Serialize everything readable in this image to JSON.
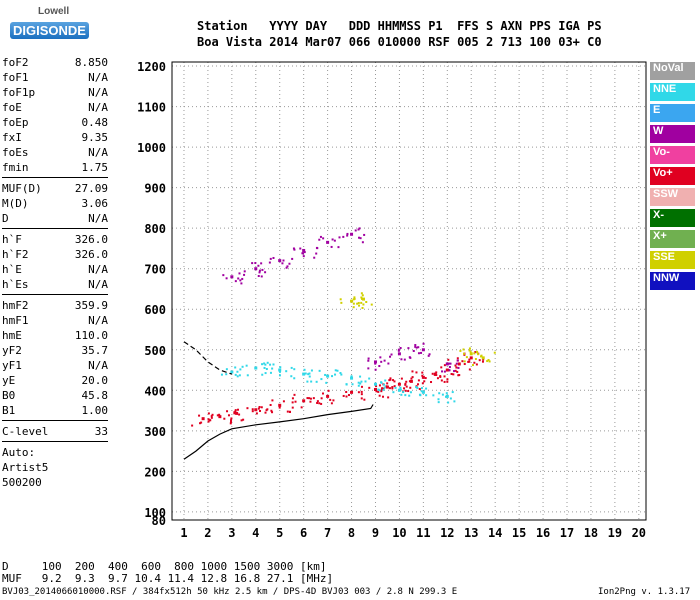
{
  "logo": {
    "line1": "Lowell",
    "line2": "DIGISONDE"
  },
  "header": {
    "line1": "Station   YYYY DAY   DDD HHMMSS P1  FFS S AXN PPS IGA PS",
    "line2": "Boa Vista 2014 Mar07 066 010000 RSF 005 2 713 100 03+ C0"
  },
  "params": {
    "group1": [
      {
        "name": "foF2",
        "value": "8.850"
      },
      {
        "name": "foF1",
        "value": "N/A"
      },
      {
        "name": "foF1p",
        "value": "N/A"
      },
      {
        "name": "foE",
        "value": "N/A"
      },
      {
        "name": "foEp",
        "value": "0.48"
      },
      {
        "name": "fxI",
        "value": "9.35"
      },
      {
        "name": "foEs",
        "value": "N/A"
      },
      {
        "name": "fmin",
        "value": "1.75"
      }
    ],
    "group2": [
      {
        "name": "MUF(D)",
        "value": "27.09"
      },
      {
        "name": "M(D)",
        "value": "3.06"
      },
      {
        "name": "D",
        "value": "N/A"
      }
    ],
    "group3": [
      {
        "name": "h`F",
        "value": "326.0"
      },
      {
        "name": "h`F2",
        "value": "326.0"
      },
      {
        "name": "h`E",
        "value": "N/A"
      },
      {
        "name": "h`Es",
        "value": "N/A"
      }
    ],
    "group4": [
      {
        "name": "hmF2",
        "value": "359.9"
      },
      {
        "name": "hmF1",
        "value": "N/A"
      },
      {
        "name": "hmE",
        "value": "110.0"
      },
      {
        "name": "yF2",
        "value": "35.7"
      },
      {
        "name": "yF1",
        "value": "N/A"
      },
      {
        "name": "yE",
        "value": "20.0"
      },
      {
        "name": "B0",
        "value": "45.8"
      },
      {
        "name": "B1",
        "value": "1.00"
      }
    ],
    "clevel": {
      "name": "C-level",
      "value": "33"
    },
    "auto": [
      "Auto:",
      "Artist5",
      "500200"
    ]
  },
  "legend": [
    {
      "label": "NoVal",
      "color": "#a0a0a0"
    },
    {
      "label": "NNE",
      "color": "#30d8e8"
    },
    {
      "label": "E",
      "color": "#3ba6f0"
    },
    {
      "label": "W",
      "color": "#a000a0"
    },
    {
      "label": "Vo-",
      "color": "#f040a0"
    },
    {
      "label": "Vo+",
      "color": "#e00020"
    },
    {
      "label": "SSW",
      "color": "#f0b0b0"
    },
    {
      "label": "X-",
      "color": "#007000"
    },
    {
      "label": "X+",
      "color": "#70b050"
    },
    {
      "label": "SSE",
      "color": "#d0d000"
    },
    {
      "label": "NNW",
      "color": "#1010c0"
    }
  ],
  "dmuf": {
    "line1": "D     100  200  400  600  800 1000 1500 3000 [km]",
    "line2": "MUF   9.2  9.3  9.7 10.4 11.4 12.8 16.8 27.1 [MHz]"
  },
  "footer": "BVJ03_2014066010000.RSF / 384fx512h 50 kHz 2.5 km / DPS-4D BVJ03 003 / 2.8 N 299.3 E",
  "version": "Ion2Png v. 1.3.17",
  "chart_data": {
    "type": "scatter",
    "title": "",
    "xlabel": "",
    "ylabel": "",
    "xlim": [
      0.5,
      20.3
    ],
    "ylim": [
      80,
      1210
    ],
    "xticks": [
      1,
      2,
      3,
      4,
      5,
      6,
      7,
      8,
      9,
      10,
      11,
      12,
      13,
      14,
      15,
      16,
      17,
      18,
      19,
      20
    ],
    "yticks": [
      80,
      100,
      200,
      300,
      400,
      500,
      600,
      700,
      800,
      900,
      1000,
      1100,
      1200
    ],
    "grid": true,
    "legend_position": "right",
    "series": [
      {
        "name": "Vo+",
        "color": "#e00020",
        "points": [
          [
            1.8,
            330
          ],
          [
            2.5,
            335
          ],
          [
            3.2,
            343
          ],
          [
            4,
            352
          ],
          [
            5,
            363
          ],
          [
            6,
            374
          ],
          [
            7,
            385
          ],
          [
            8,
            395
          ],
          [
            9,
            402
          ],
          [
            9.5,
            408
          ],
          [
            10,
            415
          ],
          [
            10.5,
            422
          ],
          [
            11,
            432
          ],
          [
            11.5,
            440
          ],
          [
            12,
            450
          ],
          [
            12.5,
            465
          ],
          [
            13,
            480
          ]
        ]
      },
      {
        "name": "NNE",
        "color": "#30d8e8",
        "points": [
          [
            3,
            445
          ],
          [
            4,
            455
          ],
          [
            5,
            450
          ],
          [
            6,
            440
          ],
          [
            7,
            435
          ],
          [
            8,
            430
          ],
          [
            9,
            415
          ],
          [
            10,
            400
          ],
          [
            11,
            395
          ],
          [
            12,
            385
          ]
        ]
      },
      {
        "name": "W",
        "color": "#a000a0",
        "points": [
          [
            3,
            680
          ],
          [
            4,
            700
          ],
          [
            5,
            720
          ],
          [
            6,
            745
          ],
          [
            7,
            765
          ],
          [
            8,
            785
          ],
          [
            9,
            470
          ],
          [
            10,
            490
          ],
          [
            11,
            500
          ],
          [
            12,
            465
          ]
        ]
      },
      {
        "name": "SSE",
        "color": "#d0d000",
        "points": [
          [
            8,
            620
          ],
          [
            8.5,
            625
          ],
          [
            13,
            490
          ],
          [
            13.5,
            480
          ]
        ]
      }
    ],
    "model_curves": [
      {
        "name": "solid",
        "points": [
          [
            1.0,
            230
          ],
          [
            1.5,
            250
          ],
          [
            2,
            275
          ],
          [
            2.5,
            292
          ],
          [
            3,
            305
          ],
          [
            4,
            315
          ],
          [
            5,
            322
          ],
          [
            6,
            330
          ],
          [
            7,
            340
          ],
          [
            8,
            348
          ],
          [
            8.8,
            355
          ],
          [
            8.9,
            365
          ]
        ]
      },
      {
        "name": "dashed",
        "points": [
          [
            1.0,
            520
          ],
          [
            1.5,
            500
          ],
          [
            2,
            470
          ],
          [
            2.5,
            450
          ],
          [
            3,
            440
          ]
        ]
      }
    ]
  }
}
